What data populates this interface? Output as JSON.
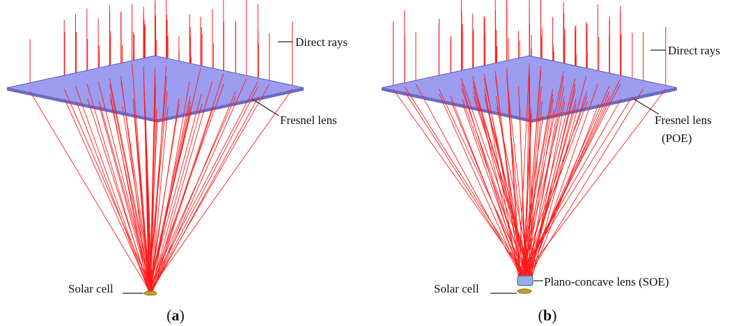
{
  "panels": [
    {
      "id": "a",
      "caption_open": "(",
      "caption_letter": "a",
      "caption_close": ")",
      "labels": {
        "direct_rays": "Direct rays",
        "fresnel_lens": "Fresnel lens",
        "solar_cell": "Solar cell"
      }
    },
    {
      "id": "b",
      "caption_open": "(",
      "caption_letter": "b",
      "caption_close": ")",
      "labels": {
        "direct_rays": "Direct rays",
        "fresnel_lens": "Fresnel lens",
        "fresnel_lens_sub": "(POE)",
        "solar_cell": "Solar cell",
        "plano_concave": "Plano-concave lens (SOE)"
      }
    }
  ],
  "colors": {
    "ray": "#ff1a1a",
    "lens_top": "#9c9cf0",
    "lens_edge": "#5656b8",
    "lens_shadow": "#333355",
    "cell": "#c8a020",
    "soe": "#8fb0e0"
  }
}
